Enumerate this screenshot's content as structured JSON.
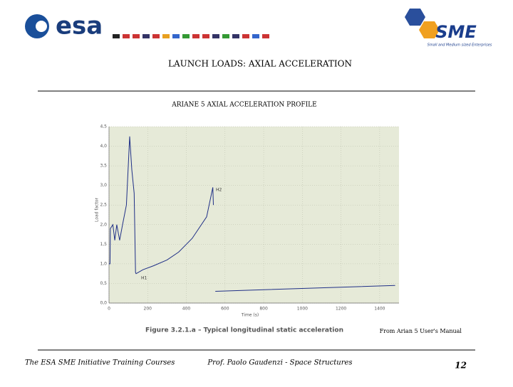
{
  "header": {
    "logo_left": "esa",
    "logo_right": "SME",
    "logo_right_sub": "Small and Medium sized Enterprises",
    "title": "LAUNCH LOADS: AXIAL ACCELERATION",
    "subtitle": "ARIANE 5 AXIAL ACCELERATION PROFILE"
  },
  "chart_data": {
    "type": "line",
    "xlabel": "Time (s)",
    "ylabel": "Load factor",
    "caption": "Figure 3.2.1.a – Typical longitudinal static acceleration",
    "annotations": [
      "H1",
      "H2"
    ],
    "x": [
      0,
      5,
      7,
      20,
      30,
      40,
      55,
      70,
      90,
      107,
      118,
      130,
      137,
      140,
      175,
      230,
      300,
      360,
      430,
      505,
      537,
      540,
      545,
      550,
      1480
    ],
    "series": [
      {
        "name": "Axial acceleration",
        "color": "#1f2f86",
        "values": [
          1.0,
          1.0,
          1.9,
          2.0,
          1.6,
          2.0,
          1.6,
          2.0,
          2.5,
          4.25,
          3.4,
          2.8,
          0.78,
          0.75,
          0.85,
          0.95,
          1.1,
          1.3,
          1.65,
          2.2,
          2.95,
          2.5,
          null,
          0.3,
          0.45
        ]
      }
    ],
    "xlim": [
      0,
      1500
    ],
    "xticks": [
      0,
      200,
      400,
      600,
      800,
      1000,
      1200,
      1400
    ],
    "ylim": [
      0,
      4.5
    ],
    "yticks": [
      {
        "value": 0,
        "label": "0,0"
      },
      {
        "value": 0.5,
        "label": "0,5"
      },
      {
        "value": 1,
        "label": "1,0"
      },
      {
        "value": 1.5,
        "label": "1,5"
      },
      {
        "value": 2,
        "label": "2,0"
      },
      {
        "value": 2.5,
        "label": "2,5"
      },
      {
        "value": 3,
        "label": "3,0"
      },
      {
        "value": 3.5,
        "label": "3,5"
      },
      {
        "value": 4,
        "label": "4,0"
      },
      {
        "value": 4.5,
        "label": "4,5"
      }
    ],
    "grid": true
  },
  "source": "From Arian 5 User's Manual",
  "footer": {
    "left": "The ESA SME Initiative Training Courses",
    "center": "Prof. Paolo Gaudenzi - Space Structures",
    "page": "12"
  }
}
